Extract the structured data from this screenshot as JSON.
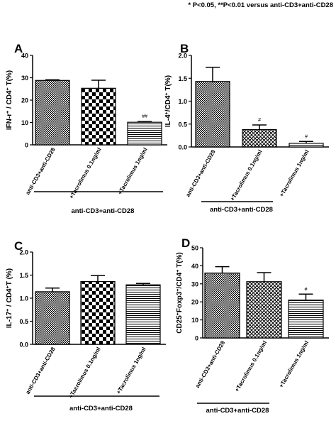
{
  "figure": {
    "note_marker": "*",
    "note": "P<0.05,  **P<0.01 versus anti-CD3+anti-CD28"
  },
  "chart_data": [
    {
      "panel": "A",
      "type": "bar",
      "ylabel": "IFN-r+ / CD4+ T(%)",
      "ylim": [
        0,
        40
      ],
      "yticks": [
        "0",
        "10",
        "20",
        "30",
        "40"
      ],
      "categories": [
        "anti-CD3+anti-CD28",
        "+Tacrolimus 0.1ng/ml",
        "+Tacrolimus 1ng/ml"
      ],
      "values": [
        28.8,
        25.3,
        10.1
      ],
      "errors": [
        0.3,
        3.6,
        0.3
      ],
      "sig": [
        "",
        "",
        "##"
      ],
      "patterns": [
        "fine",
        "checker",
        "hlines"
      ],
      "group_label": "anti-CD3+anti-CD28"
    },
    {
      "panel": "B",
      "type": "bar",
      "ylabel": "IL-4+/CD4+ T(%)",
      "ylim": [
        0,
        2.0
      ],
      "yticks": [
        "0.0",
        "0.5",
        "1.0",
        "1.5",
        "2.0"
      ],
      "categories": [
        "anti-CD3+anti-CD28",
        "+Tacrolimus 0.1ng/ml",
        "+Tacrolimus 1ng/ml"
      ],
      "values": [
        1.43,
        0.38,
        0.08
      ],
      "errors": [
        0.31,
        0.1,
        0.04
      ],
      "sig": [
        "",
        "#",
        "#"
      ],
      "patterns": [
        "fine",
        "cross",
        "hlines"
      ],
      "group_label": "anti-CD3+anti-CD28"
    },
    {
      "panel": "C",
      "type": "bar",
      "ylabel": "IL-17+ / CD4+T (%)",
      "ylim": [
        0,
        2.0
      ],
      "yticks": [
        "0.0",
        "0.5",
        "1.0",
        "1.5",
        "2.0"
      ],
      "categories": [
        "anti-CD3+anti-CD28",
        "+Tacrolimus 0.1ng/ml",
        "+Tacrolimus 1ng/ml"
      ],
      "values": [
        1.14,
        1.36,
        1.29
      ],
      "errors": [
        0.08,
        0.13,
        0.03
      ],
      "sig": [
        "",
        "",
        ""
      ],
      "patterns": [
        "fine",
        "checker",
        "hlines"
      ],
      "group_label": "anti-CD3+anti-CD28"
    },
    {
      "panel": "D",
      "type": "bar",
      "ylabel": "CD25+Foxp3+/CD4+ T(%)",
      "ylim": [
        0,
        50
      ],
      "yticks": [
        "0",
        "10",
        "20",
        "30",
        "40",
        "50"
      ],
      "categories": [
        "anti-CD3+anti-CD28",
        "+Tacrolimus 0.1ng/ml",
        "+Tacrolimus 1ng/ml"
      ],
      "values": [
        36.0,
        31.2,
        21.0
      ],
      "errors": [
        3.5,
        5.0,
        3.3
      ],
      "sig": [
        "",
        "",
        "#"
      ],
      "patterns": [
        "fine",
        "cross",
        "hlines"
      ],
      "group_label": "anti-CD3+anti-CD28"
    }
  ]
}
